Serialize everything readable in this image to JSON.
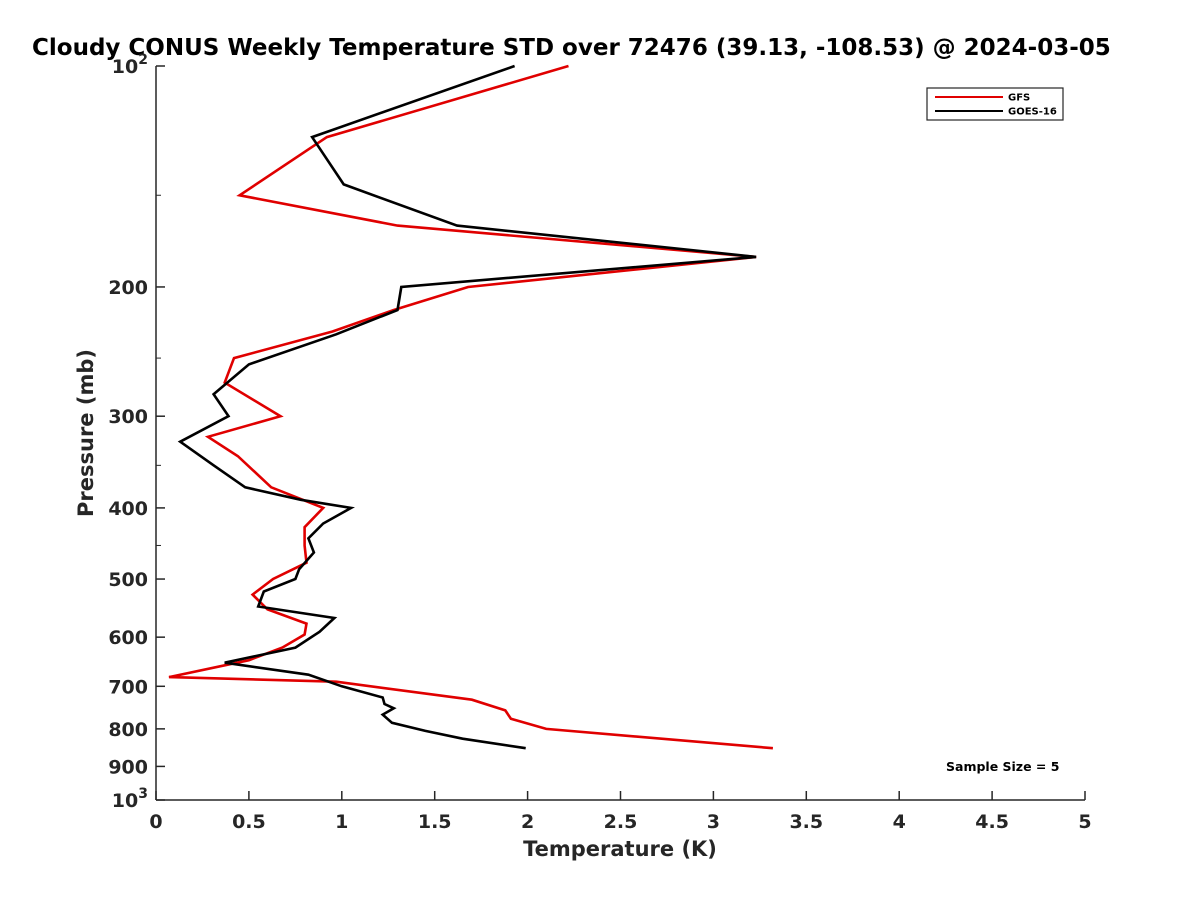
{
  "chart_data": {
    "type": "line",
    "title": "Cloudy CONUS Weekly Temperature STD over 72476 (39.13, -108.53) @ 2024-03-05",
    "xlabel": "Temperature (K)",
    "ylabel": "Pressure (mb)",
    "xlim": [
      0,
      5
    ],
    "ylim": [
      100,
      1000
    ],
    "yscale": "log",
    "y_reversed": true,
    "x_ticks": [
      "0",
      "0.5",
      "1",
      "1.5",
      "2",
      "2.5",
      "3",
      "3.5",
      "4",
      "4.5",
      "5"
    ],
    "x_tick_values": [
      0,
      0.5,
      1,
      1.5,
      2,
      2.5,
      3,
      3.5,
      4,
      4.5,
      5
    ],
    "y_ticks": [
      {
        "value": 100,
        "label": "10",
        "sup": "2"
      },
      {
        "value": 200,
        "label": "200",
        "sup": ""
      },
      {
        "value": 300,
        "label": "300",
        "sup": ""
      },
      {
        "value": 400,
        "label": "400",
        "sup": ""
      },
      {
        "value": 500,
        "label": "500",
        "sup": ""
      },
      {
        "value": 600,
        "label": "600",
        "sup": ""
      },
      {
        "value": 700,
        "label": "700",
        "sup": ""
      },
      {
        "value": 800,
        "label": "800",
        "sup": ""
      },
      {
        "value": 900,
        "label": "900",
        "sup": ""
      },
      {
        "value": 1000,
        "label": "10",
        "sup": "3"
      }
    ],
    "grid": false,
    "legend_position": "top-right",
    "annotation": "Sample Size = 5",
    "series": [
      {
        "name": "GFS",
        "color": "#e00000",
        "points": [
          [
            2.22,
            100
          ],
          [
            0.92,
            125
          ],
          [
            0.45,
            150
          ],
          [
            1.3,
            165
          ],
          [
            3.23,
            182
          ],
          [
            1.68,
            200
          ],
          [
            1.28,
            215
          ],
          [
            0.95,
            230
          ],
          [
            0.42,
            250
          ],
          [
            0.37,
            270
          ],
          [
            0.67,
            300
          ],
          [
            0.28,
            320
          ],
          [
            0.44,
            340
          ],
          [
            0.52,
            355
          ],
          [
            0.62,
            375
          ],
          [
            0.9,
            400
          ],
          [
            0.8,
            425
          ],
          [
            0.8,
            450
          ],
          [
            0.81,
            475
          ],
          [
            0.63,
            500
          ],
          [
            0.52,
            525
          ],
          [
            0.6,
            550
          ],
          [
            0.81,
            575
          ],
          [
            0.8,
            595
          ],
          [
            0.68,
            620
          ],
          [
            0.5,
            645
          ],
          [
            0.07,
            680
          ],
          [
            0.97,
            690
          ],
          [
            1.7,
            730
          ],
          [
            1.88,
            755
          ],
          [
            1.91,
            775
          ],
          [
            2.1,
            800
          ],
          [
            3.32,
            850
          ]
        ]
      },
      {
        "name": "GOES-16",
        "color": "#000000",
        "points": [
          [
            1.93,
            100
          ],
          [
            0.84,
            125
          ],
          [
            1.01,
            145
          ],
          [
            1.62,
            165
          ],
          [
            3.23,
            182
          ],
          [
            1.32,
            200
          ],
          [
            1.3,
            215
          ],
          [
            0.97,
            232
          ],
          [
            0.5,
            255
          ],
          [
            0.31,
            280
          ],
          [
            0.39,
            300
          ],
          [
            0.13,
            325
          ],
          [
            0.31,
            350
          ],
          [
            0.48,
            375
          ],
          [
            0.78,
            390
          ],
          [
            1.05,
            400
          ],
          [
            0.9,
            420
          ],
          [
            0.82,
            440
          ],
          [
            0.85,
            460
          ],
          [
            0.77,
            485
          ],
          [
            0.75,
            500
          ],
          [
            0.58,
            520
          ],
          [
            0.55,
            545
          ],
          [
            0.96,
            565
          ],
          [
            0.88,
            590
          ],
          [
            0.75,
            620
          ],
          [
            0.37,
            650
          ],
          [
            0.82,
            675
          ],
          [
            1.0,
            700
          ],
          [
            1.22,
            725
          ],
          [
            1.23,
            740
          ],
          [
            1.28,
            750
          ],
          [
            1.22,
            765
          ],
          [
            1.27,
            785
          ],
          [
            1.45,
            805
          ],
          [
            1.65,
            825
          ],
          [
            1.99,
            850
          ]
        ]
      }
    ]
  }
}
